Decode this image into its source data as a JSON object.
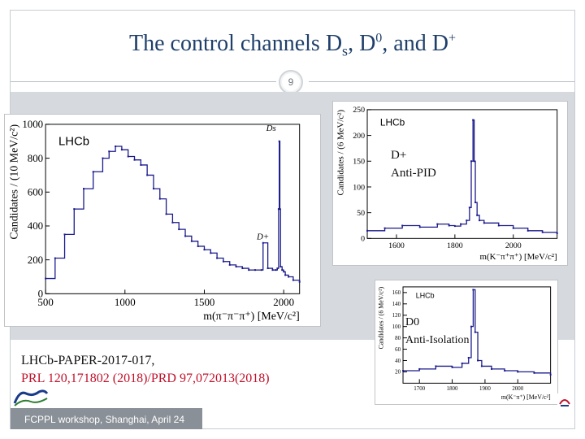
{
  "slide": {
    "title_text": "The control channels D",
    "title_sub": "s",
    "title_mid": ", D",
    "title_sup1": "0",
    "title_mid2": ", and D",
    "title_sup2": "+",
    "page_number": "9"
  },
  "labels": {
    "dplus_name": "D+",
    "dplus_cut": "Anti-PID",
    "dzero_name": "D0",
    "dzero_cut": "Anti-Isolation"
  },
  "references": {
    "paper": "LHCb-PAPER-2017-017,",
    "journal": "PRL 120,171802 (2018)/PRD 97,072013(2018)"
  },
  "footer": {
    "text": "FCPPL workshop, Shanghai, April 24"
  },
  "colors": {
    "title": "#1f3f6a",
    "journal": "#c0112a",
    "histogram": "#1a1a8c",
    "footer_bg": "#8a9098"
  },
  "chart_data": [
    {
      "type": "line",
      "experiment_label": "LHCb",
      "peak_labels": [
        "Ds",
        "D+"
      ],
      "xlabel": "m(π⁻π⁻π⁺) [MeV/c²]",
      "ylabel": "Candidates / (10 MeV/c²)",
      "xlim": [
        500,
        2100
      ],
      "ylim": [
        0,
        1000
      ],
      "xticks": [
        500,
        1000,
        1500,
        2000
      ],
      "yticks": [
        0,
        200,
        400,
        600,
        800,
        1000
      ],
      "x": [
        500,
        560,
        620,
        680,
        740,
        800,
        860,
        900,
        940,
        980,
        1020,
        1060,
        1100,
        1140,
        1180,
        1220,
        1260,
        1300,
        1340,
        1380,
        1420,
        1460,
        1500,
        1540,
        1580,
        1620,
        1660,
        1700,
        1740,
        1780,
        1820,
        1860,
        1870,
        1900,
        1930,
        1950,
        1960,
        1968,
        1972,
        1976,
        1980,
        1990,
        2000,
        2010,
        2030,
        2060,
        2100
      ],
      "y": [
        90,
        210,
        350,
        500,
        620,
        720,
        800,
        840,
        870,
        850,
        810,
        790,
        760,
        700,
        620,
        560,
        470,
        420,
        380,
        340,
        310,
        280,
        260,
        240,
        210,
        190,
        170,
        160,
        150,
        140,
        140,
        140,
        300,
        150,
        140,
        140,
        150,
        500,
        900,
        500,
        160,
        140,
        130,
        110,
        100,
        80,
        70
      ]
    },
    {
      "type": "line",
      "experiment_label": "LHCb",
      "xlabel": "m(K⁻π⁺π⁺) [MeV/c²]",
      "ylabel": "Candidates / (6 MeV/c²)",
      "xlim": [
        1500,
        2150
      ],
      "ylim": [
        0,
        250
      ],
      "xticks": [
        1600,
        1800,
        2000
      ],
      "yticks": [
        0,
        50,
        100,
        150,
        200,
        250
      ],
      "x": [
        1500,
        1560,
        1620,
        1680,
        1740,
        1780,
        1800,
        1820,
        1840,
        1850,
        1856,
        1862,
        1866,
        1870,
        1876,
        1884,
        1900,
        1950,
        2000,
        2050,
        2100,
        2150
      ],
      "y": [
        15,
        20,
        25,
        22,
        28,
        25,
        24,
        28,
        35,
        60,
        150,
        230,
        150,
        70,
        45,
        35,
        30,
        25,
        20,
        15,
        12,
        10
      ]
    },
    {
      "type": "line",
      "experiment_label": "LHCb",
      "xlabel": "m(K⁻π⁺) [MeV/c²]",
      "ylabel": "Candidates / (6 MeV/c²)",
      "xlim": [
        1650,
        2100
      ],
      "ylim": [
        0,
        170
      ],
      "xticks": [
        1700,
        1800,
        1900,
        2000
      ],
      "yticks": [
        20,
        40,
        60,
        80,
        100,
        120,
        140,
        160
      ],
      "x": [
        1650,
        1700,
        1750,
        1800,
        1830,
        1850,
        1858,
        1864,
        1870,
        1878,
        1890,
        1920,
        1960,
        2000,
        2050,
        2100
      ],
      "y": [
        22,
        25,
        30,
        28,
        35,
        45,
        100,
        165,
        90,
        40,
        30,
        25,
        22,
        20,
        18,
        15
      ]
    }
  ]
}
